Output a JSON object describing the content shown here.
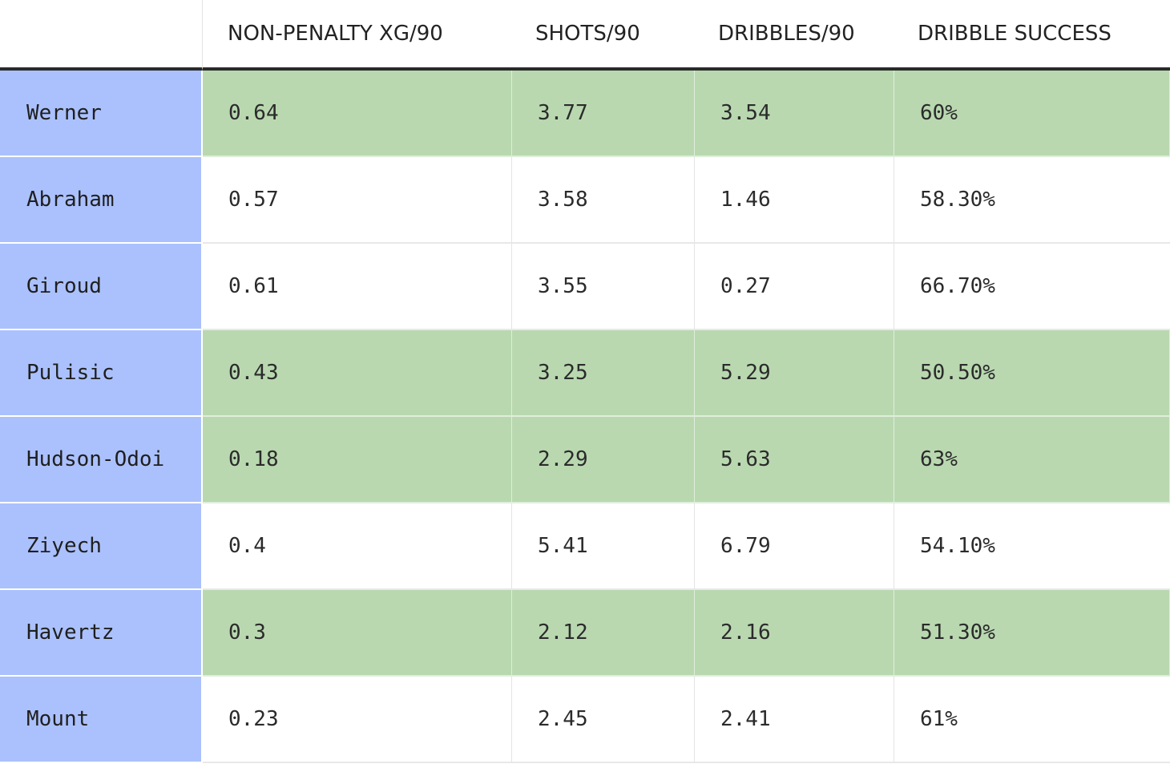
{
  "chart_data": {
    "type": "table",
    "columns": [
      "",
      "NON-PENALTY XG/90",
      "SHOTS/90",
      "DRIBBLES/90",
      "DRIBBLE SUCCESS"
    ],
    "rows": [
      {
        "player": "Werner",
        "npxg90": "0.64",
        "shots90": "3.77",
        "dribbles90": "3.54",
        "dribble_success": "60%",
        "highlighted": true
      },
      {
        "player": "Abraham",
        "npxg90": "0.57",
        "shots90": "3.58",
        "dribbles90": "1.46",
        "dribble_success": "58.30%",
        "highlighted": false
      },
      {
        "player": "Giroud",
        "npxg90": "0.61",
        "shots90": "3.55",
        "dribbles90": "0.27",
        "dribble_success": "66.70%",
        "highlighted": false
      },
      {
        "player": "Pulisic",
        "npxg90": "0.43",
        "shots90": "3.25",
        "dribbles90": "5.29",
        "dribble_success": "50.50%",
        "highlighted": true
      },
      {
        "player": "Hudson-Odoi",
        "npxg90": "0.18",
        "shots90": "2.29",
        "dribbles90": "5.63",
        "dribble_success": "63%",
        "highlighted": true
      },
      {
        "player": "Ziyech",
        "npxg90": "0.4",
        "shots90": "5.41",
        "dribbles90": "6.79",
        "dribble_success": "54.10%",
        "highlighted": false
      },
      {
        "player": "Havertz",
        "npxg90": "0.3",
        "shots90": "2.12",
        "dribbles90": "2.16",
        "dribble_success": "51.30%",
        "highlighted": true
      },
      {
        "player": "Mount",
        "npxg90": "0.23",
        "shots90": "2.45",
        "dribbles90": "2.41",
        "dribble_success": "61%",
        "highlighted": false
      }
    ],
    "colors": {
      "name_cell": "#abc1fd",
      "highlight_row": "#b9d8b0",
      "header_rule": "#2a2a2a"
    }
  }
}
